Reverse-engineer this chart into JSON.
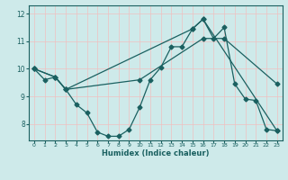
{
  "xlabel": "Humidex (Indice chaleur)",
  "bg_color": "#ceeaea",
  "grid_color": "#f0c0c0",
  "line_color": "#1a6060",
  "xlim": [
    -0.5,
    23.5
  ],
  "ylim": [
    7.4,
    12.3
  ],
  "yticks": [
    8,
    9,
    10,
    11,
    12
  ],
  "xticks": [
    0,
    1,
    2,
    3,
    4,
    5,
    6,
    7,
    8,
    9,
    10,
    11,
    12,
    13,
    14,
    15,
    16,
    17,
    18,
    19,
    20,
    21,
    22,
    23
  ],
  "line1_x": [
    0,
    1,
    2,
    3,
    4,
    5,
    6,
    7,
    8,
    9,
    10,
    11,
    12,
    13,
    14,
    15,
    16,
    17,
    18,
    19,
    20,
    21,
    22,
    23
  ],
  "line1_y": [
    10.0,
    9.6,
    9.7,
    9.25,
    8.7,
    8.4,
    7.7,
    7.55,
    7.55,
    7.8,
    8.6,
    9.6,
    10.05,
    10.8,
    10.8,
    11.45,
    11.8,
    11.1,
    11.5,
    9.45,
    8.9,
    8.85,
    7.8,
    7.75
  ],
  "line2_x": [
    0,
    2,
    3,
    15,
    16,
    23
  ],
  "line2_y": [
    10.0,
    9.7,
    9.25,
    11.45,
    11.8,
    7.75
  ],
  "line3_x": [
    0,
    2,
    3,
    10,
    16,
    18,
    23
  ],
  "line3_y": [
    10.0,
    9.7,
    9.25,
    9.6,
    11.1,
    11.1,
    9.45
  ]
}
